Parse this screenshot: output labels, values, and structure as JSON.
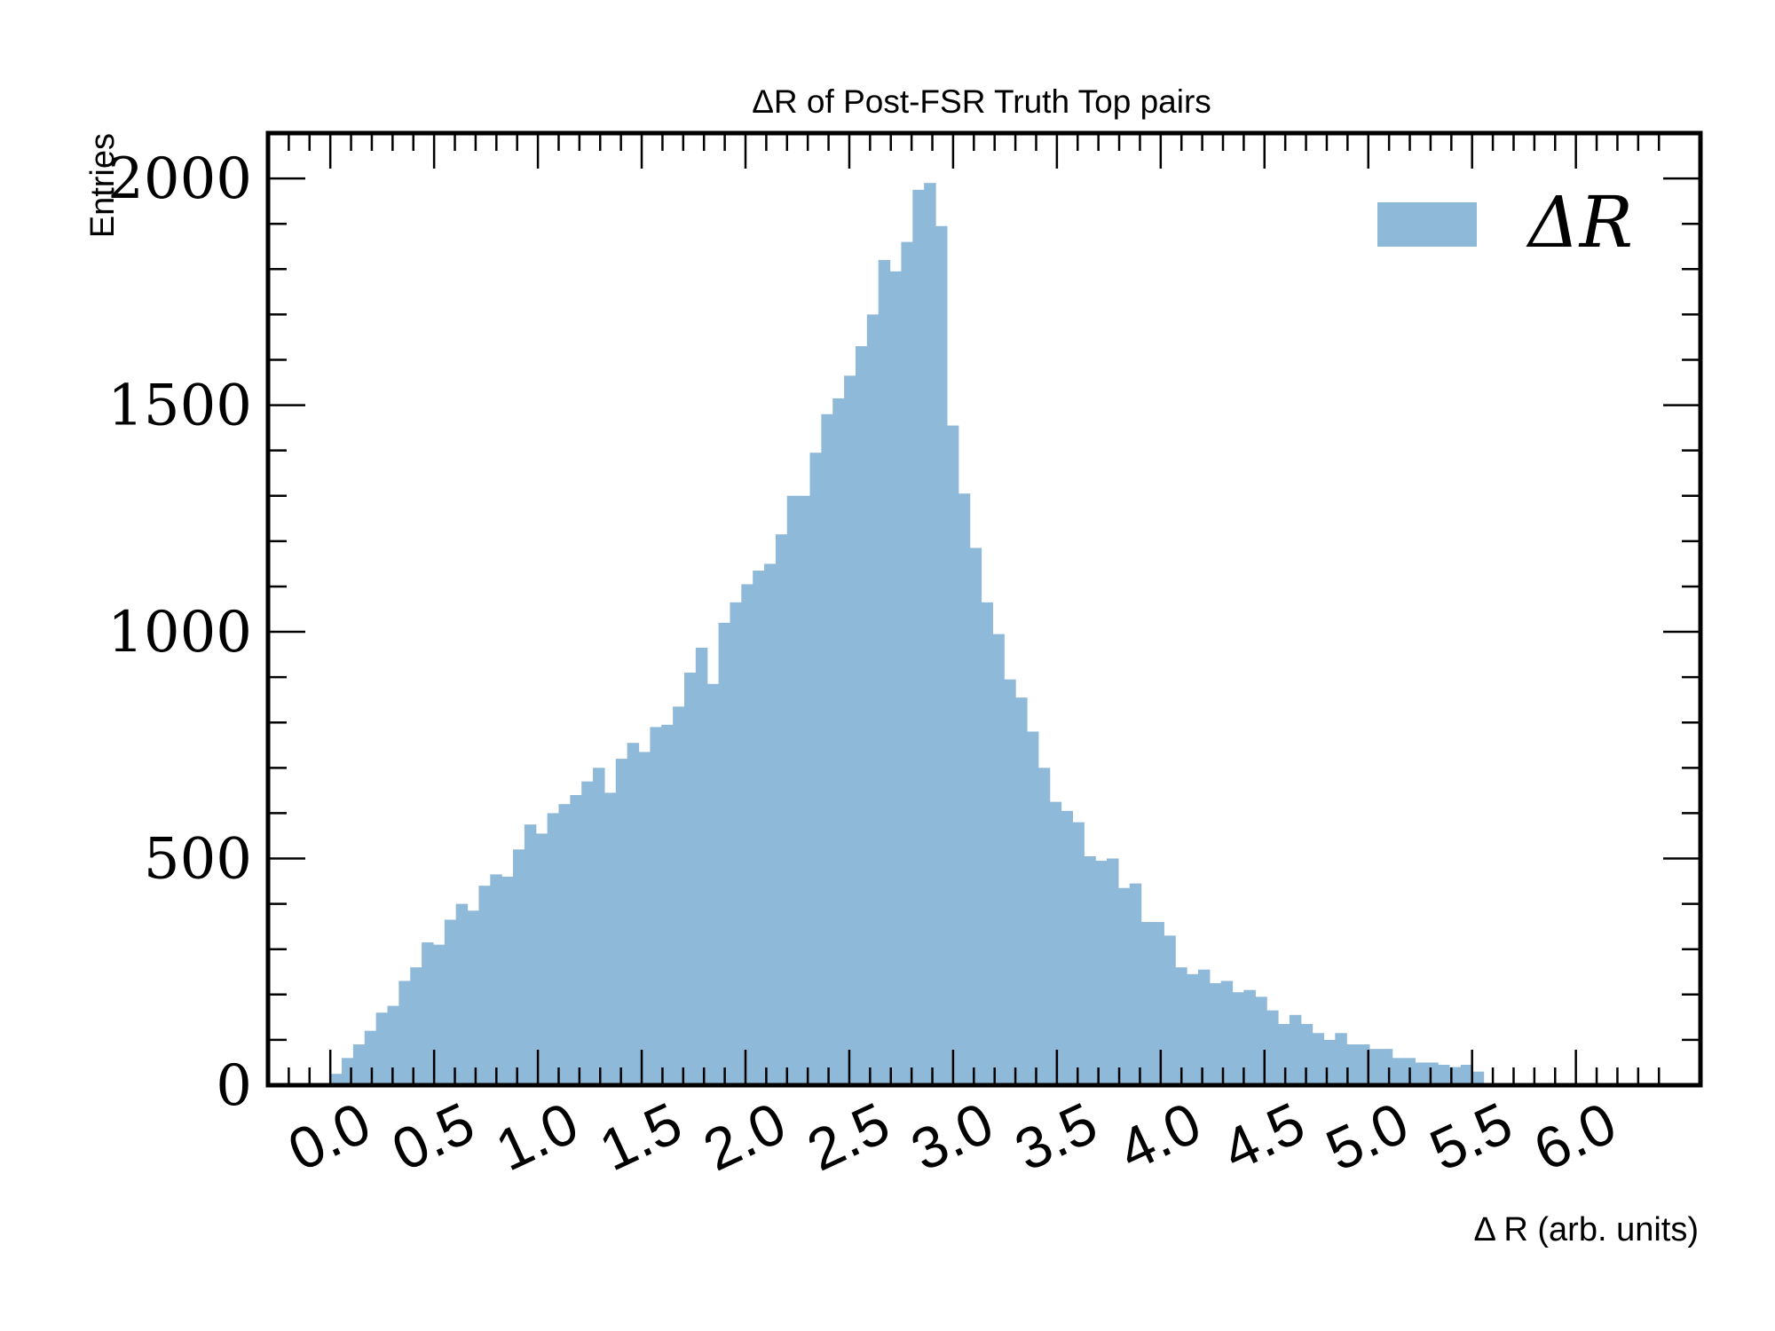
{
  "chart_data": {
    "type": "bar",
    "title": "ΔR of Post-FSR Truth Top pairs",
    "xlabel": "Δ R (arb. units)",
    "ylabel": "Entries",
    "xlim": [
      -0.3,
      6.6
    ],
    "ylim": [
      0,
      2100
    ],
    "xticks": [
      "0.0",
      "0.5",
      "1.0",
      "1.5",
      "2.0",
      "2.5",
      "3.0",
      "3.5",
      "4.0",
      "4.5",
      "5.0",
      "5.5",
      "6.0"
    ],
    "yticks": [
      "0",
      "500",
      "1000",
      "1500",
      "2000"
    ],
    "legend": {
      "label": "ΔR",
      "position": "top-right"
    },
    "bar_color": "#8fb9d9",
    "bin_width": 0.055,
    "bin_start": 0.0,
    "values": [
      25,
      60,
      90,
      120,
      160,
      175,
      230,
      260,
      315,
      310,
      365,
      400,
      385,
      440,
      465,
      460,
      520,
      575,
      555,
      600,
      620,
      640,
      670,
      700,
      645,
      720,
      755,
      735,
      790,
      795,
      835,
      910,
      965,
      885,
      1020,
      1065,
      1105,
      1135,
      1150,
      1215,
      1300,
      1300,
      1395,
      1480,
      1515,
      1565,
      1630,
      1700,
      1820,
      1795,
      1860,
      1975,
      1990,
      1895,
      1455,
      1305,
      1185,
      1065,
      995,
      895,
      855,
      780,
      700,
      625,
      605,
      580,
      505,
      495,
      500,
      435,
      445,
      360,
      360,
      330,
      260,
      245,
      255,
      225,
      230,
      205,
      210,
      195,
      165,
      135,
      155,
      135,
      115,
      100,
      115,
      90,
      90,
      80,
      80,
      60,
      60,
      50,
      50,
      45,
      40,
      45,
      30
    ]
  }
}
